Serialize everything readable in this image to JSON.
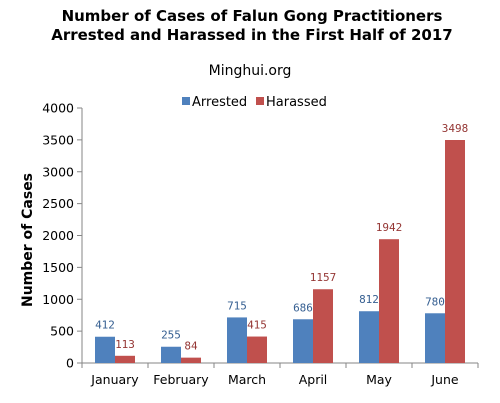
{
  "chart_data": {
    "type": "bar",
    "title_lines": [
      "Number of Cases of Falun Gong Practitioners",
      "Arrested and Harassed in the First Half of 2017"
    ],
    "subtitle": "Minghui.org",
    "xlabel": "",
    "ylabel": "Number of Cases",
    "ylim": [
      0,
      4000
    ],
    "yticks": [
      0,
      500,
      1000,
      1500,
      2000,
      2500,
      3000,
      3500,
      4000
    ],
    "categories": [
      "January",
      "February",
      "March",
      "April",
      "May",
      "June"
    ],
    "series": [
      {
        "name": "Arrested",
        "color": "#4f81bd",
        "label_color": "#376092",
        "values": [
          412,
          255,
          715,
          686,
          812,
          780
        ]
      },
      {
        "name": "Harassed",
        "color": "#c0504d",
        "label_color": "#953735",
        "values": [
          113,
          84,
          415,
          1157,
          1942,
          3498
        ]
      }
    ],
    "legend_position": "top-center",
    "grid": false
  }
}
